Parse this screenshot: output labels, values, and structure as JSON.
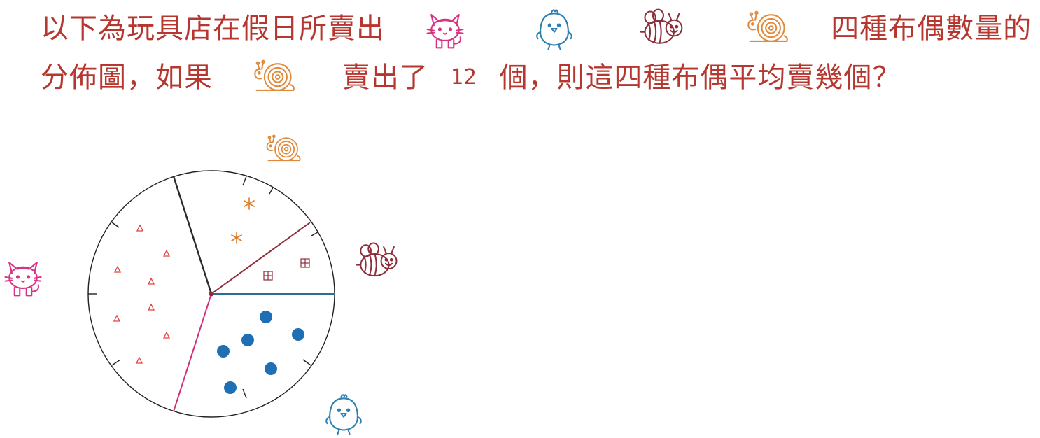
{
  "question": {
    "line1_prefix": "以下為玩具店在假日所賣出",
    "line1_suffix": "四種布偶數量的",
    "line2_prefix": "分佈圖，如果",
    "line2_mid": "賣出了",
    "snail_count": "12",
    "line2_suffix": "個，則這四種布偶平均賣幾個？"
  },
  "icons": [
    "cat-icon",
    "chick-icon",
    "bee-icon",
    "snail-icon"
  ],
  "colors": {
    "text": "#b5372f",
    "cat": "#d63384",
    "chick": "#2f7fb0",
    "bee": "#8c2f3a",
    "snail": "#e08a3c",
    "dots": "#1f6fb5",
    "asterisk": "#e07a22",
    "triangle": "#e0433f"
  },
  "pie": {
    "sectors": [
      {
        "animal": "cat",
        "marker": "triangle",
        "count": 8
      },
      {
        "animal": "snail",
        "marker": "asterisk",
        "count": 2
      },
      {
        "animal": "bee",
        "marker": "grid-square",
        "count": 2
      },
      {
        "animal": "chick",
        "marker": "dot",
        "count": 6
      }
    ]
  }
}
